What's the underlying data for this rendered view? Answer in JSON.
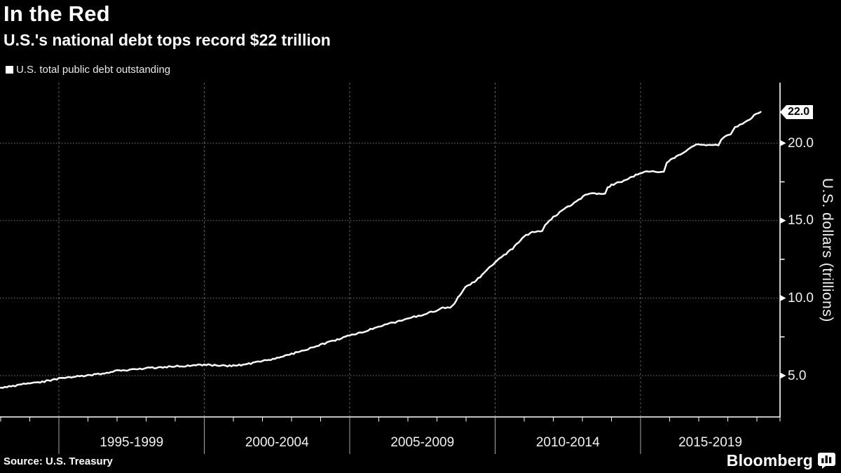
{
  "header": {
    "title": "In the Red",
    "subtitle": "U.S.'s national debt tops record $22 trillion"
  },
  "legend": {
    "label": "U.S. total public debt outstanding",
    "swatch_color": "#ffffff"
  },
  "axes": {
    "y": {
      "title": "U.S. dollars (trillions)",
      "ticks": [
        {
          "v": 20,
          "label": "20.0"
        },
        {
          "v": 15,
          "label": "15.0"
        },
        {
          "v": 10,
          "label": "10.0"
        },
        {
          "v": 5,
          "label": "5.0"
        }
      ],
      "minor_ticks": [
        17.5,
        12.5,
        7.5
      ],
      "gridline_values": [
        5,
        10,
        15,
        20
      ]
    },
    "x": {
      "boundary_years": [
        1995,
        2000,
        2005,
        2010,
        2015
      ],
      "year_tick_start": 1993,
      "year_tick_end": 2019
    }
  },
  "chart_data": {
    "type": "line",
    "title": "In the Red",
    "subtitle": "U.S.'s national debt tops record $22 trillion",
    "categories": [
      "1995-1999",
      "2000-2004",
      "2005-2009",
      "2010-2014",
      "2015-2019"
    ],
    "xlabel": "",
    "ylabel": "U.S. dollars (trillions)",
    "xlim": [
      1993,
      2019.3
    ],
    "ylim": [
      2.3,
      23.9
    ],
    "grid": "dotted",
    "legend_position": "top-left",
    "last_value": 22.01,
    "last_value_label": "22.0",
    "series": [
      {
        "name": "U.S. total public debt outstanding",
        "color": "#ffffff",
        "points": [
          [
            1993.0,
            4.18
          ],
          [
            1993.5,
            4.35
          ],
          [
            1994.0,
            4.51
          ],
          [
            1994.5,
            4.62
          ],
          [
            1995.0,
            4.8
          ],
          [
            1995.5,
            4.92
          ],
          [
            1996.0,
            5.02
          ],
          [
            1996.5,
            5.13
          ],
          [
            1997.0,
            5.31
          ],
          [
            1997.5,
            5.37
          ],
          [
            1998.0,
            5.48
          ],
          [
            1998.5,
            5.53
          ],
          [
            1999.0,
            5.61
          ],
          [
            1999.5,
            5.64
          ],
          [
            2000.0,
            5.71
          ],
          [
            2000.35,
            5.66
          ],
          [
            2000.8,
            5.63
          ],
          [
            2001.2,
            5.67
          ],
          [
            2001.6,
            5.77
          ],
          [
            2002.0,
            5.94
          ],
          [
            2002.5,
            6.13
          ],
          [
            2003.0,
            6.4
          ],
          [
            2003.5,
            6.67
          ],
          [
            2004.0,
            7.0
          ],
          [
            2004.5,
            7.28
          ],
          [
            2005.0,
            7.61
          ],
          [
            2005.5,
            7.84
          ],
          [
            2006.0,
            8.17
          ],
          [
            2006.5,
            8.42
          ],
          [
            2007.0,
            8.68
          ],
          [
            2007.5,
            8.93
          ],
          [
            2008.0,
            9.2
          ],
          [
            2008.2,
            9.38
          ],
          [
            2008.45,
            9.39
          ],
          [
            2008.6,
            9.63
          ],
          [
            2008.72,
            10.02
          ],
          [
            2008.85,
            10.35
          ],
          [
            2008.98,
            10.7
          ],
          [
            2009.15,
            10.88
          ],
          [
            2009.35,
            11.15
          ],
          [
            2009.55,
            11.48
          ],
          [
            2009.8,
            11.95
          ],
          [
            2010.0,
            12.3
          ],
          [
            2010.3,
            12.77
          ],
          [
            2010.6,
            13.2
          ],
          [
            2011.0,
            14.01
          ],
          [
            2011.35,
            14.29
          ],
          [
            2011.62,
            14.34
          ],
          [
            2011.72,
            14.74
          ],
          [
            2012.0,
            15.22
          ],
          [
            2012.5,
            15.89
          ],
          [
            2012.95,
            16.43
          ],
          [
            2013.1,
            16.7
          ],
          [
            2013.35,
            16.74
          ],
          [
            2013.78,
            16.74
          ],
          [
            2013.87,
            17.11
          ],
          [
            2014.0,
            17.3
          ],
          [
            2014.5,
            17.63
          ],
          [
            2014.9,
            18.01
          ],
          [
            2015.2,
            18.15
          ],
          [
            2015.8,
            18.15
          ],
          [
            2015.9,
            18.72
          ],
          [
            2016.1,
            19.0
          ],
          [
            2016.5,
            19.42
          ],
          [
            2016.9,
            19.91
          ],
          [
            2017.1,
            19.85
          ],
          [
            2017.68,
            19.85
          ],
          [
            2017.77,
            20.21
          ],
          [
            2017.95,
            20.49
          ],
          [
            2018.1,
            20.56
          ],
          [
            2018.25,
            21.05
          ],
          [
            2018.5,
            21.21
          ],
          [
            2018.75,
            21.52
          ],
          [
            2018.98,
            21.94
          ],
          [
            2019.13,
            22.01
          ]
        ]
      }
    ]
  },
  "footer": {
    "source": "Source: U.S. Treasury",
    "brand": "Bloomberg"
  },
  "colors": {
    "background": "#000000",
    "line": "#ffffff",
    "grid_horizontal": "#757575",
    "grid_vertical": "#5e5e5e",
    "axis": "#ffffff",
    "tick": "#ffffff",
    "separator": "#a8a8a8",
    "flag_bg": "#ffffff",
    "flag_text": "#000000"
  }
}
